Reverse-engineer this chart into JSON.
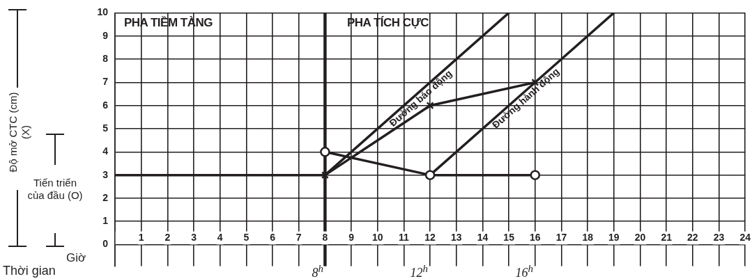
{
  "chart_data": {
    "type": "line",
    "xlabel": "Giờ",
    "xlim": [
      0,
      24
    ],
    "ylim": [
      -0.93,
      10
    ],
    "xticks": [
      {
        "value": 0,
        "label": null
      },
      1,
      2,
      3,
      4,
      5,
      6,
      7,
      8,
      9,
      10,
      11,
      12,
      13,
      14,
      15,
      16,
      17,
      18,
      19,
      20,
      21,
      22,
      23,
      24
    ],
    "yticks": [
      0,
      1,
      2,
      3,
      4,
      5,
      6,
      7,
      8,
      9,
      10
    ],
    "grid": true,
    "legend": false,
    "series": [
      {
        "x": [
          8,
          12,
          16
        ],
        "values": [
          3,
          6,
          7
        ],
        "color": "#231f20",
        "marker": "cross"
      },
      {
        "x": [
          8,
          12,
          16
        ],
        "values": [
          4,
          3,
          3
        ],
        "color": "#231f20",
        "marker": "circle"
      },
      {
        "name": "Đường báo động",
        "x": [
          8,
          15
        ],
        "values": [
          3,
          10
        ],
        "color": "#231f20",
        "marker": "none"
      },
      {
        "name": "Đường hành động",
        "x": [
          12,
          19
        ],
        "values": [
          3,
          10
        ],
        "color": "#231f20",
        "marker": "none"
      },
      {
        "x": [
          0,
          8
        ],
        "values": [
          3,
          3
        ],
        "color": "#231f20",
        "marker": "none"
      }
    ],
    "ref_lines": [
      {
        "axis": "x",
        "value": 8,
        "color": "#231f20"
      }
    ],
    "annotations": [
      "Độ mở CTC (cm)\n(X)",
      "Tiến triển của đầu (O)",
      "Thời gian",
      "PHA TIỀM TÀNG",
      "PHA TÍCH CỰC",
      "8$^{h}$",
      "12$^{h}$",
      "16$^{h}$"
    ]
  }
}
